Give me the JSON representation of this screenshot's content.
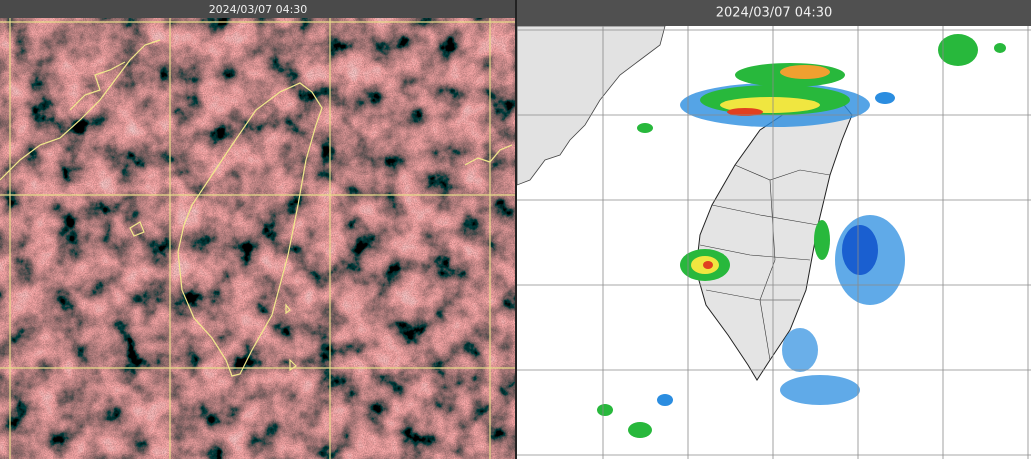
{
  "panels": [
    {
      "timestamp": "2024/03/07 04:30"
    },
    {
      "timestamp": "2024/03/07 04:30"
    }
  ]
}
